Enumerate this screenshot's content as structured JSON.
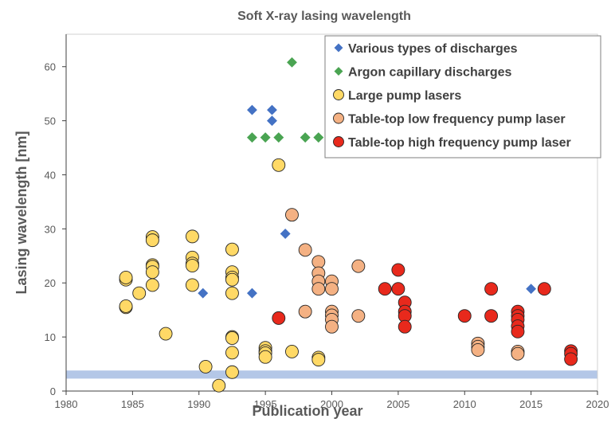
{
  "chart_data": {
    "type": "scatter",
    "title": "Soft X-ray lasing wavelength",
    "xlabel": "Publication year",
    "ylabel": "Lasing wavelength [nm]",
    "xlim": [
      1980,
      2020
    ],
    "ylim": [
      0,
      66
    ],
    "xticks": [
      1980,
      1985,
      1990,
      1995,
      2000,
      2005,
      2010,
      2015,
      2020
    ],
    "yticks": [
      0,
      10,
      20,
      30,
      40,
      50,
      60
    ],
    "grid": false,
    "legend_position": "top-right",
    "band": {
      "y0": 2.3,
      "y1": 3.8,
      "color": "#b4c7e7"
    },
    "series": [
      {
        "name": "Various types of discharges",
        "marker": "diamond",
        "color": "#4472c4",
        "points": [
          [
            1990.3,
            18.1
          ],
          [
            1994,
            52
          ],
          [
            1994,
            18.1
          ],
          [
            1995.5,
            52
          ],
          [
            1995.5,
            50
          ],
          [
            1996.5,
            29.1
          ],
          [
            2002.1,
            13.7
          ],
          [
            2005.1,
            18.9
          ],
          [
            2015,
            18.9
          ]
        ]
      },
      {
        "name": "Argon capillary discharges",
        "marker": "diamond",
        "color": "#4aa452",
        "points": [
          [
            1994,
            46.9
          ],
          [
            1995,
            46.9
          ],
          [
            1996,
            46.9
          ],
          [
            1997,
            60.8
          ],
          [
            1998,
            46.9
          ],
          [
            1999,
            46.9
          ],
          [
            2005,
            46.9
          ]
        ]
      },
      {
        "name": "Large pump lasers",
        "marker": "circle",
        "color": "#ffd966",
        "points": [
          [
            1984.5,
            20.6
          ],
          [
            1984.5,
            21
          ],
          [
            1984.5,
            15.5
          ],
          [
            1984.5,
            15.7
          ],
          [
            1985.5,
            18.1
          ],
          [
            1986.5,
            28.5
          ],
          [
            1986.5,
            27.9
          ],
          [
            1986.5,
            23.3
          ],
          [
            1986.5,
            23.0
          ],
          [
            1986.5,
            22.0
          ],
          [
            1986.5,
            19.6
          ],
          [
            1987.5,
            10.6
          ],
          [
            1989.5,
            28.6
          ],
          [
            1989.5,
            24.7
          ],
          [
            1989.5,
            23.6
          ],
          [
            1989.5,
            23.2
          ],
          [
            1989.5,
            19.6
          ],
          [
            1990.5,
            4.5
          ],
          [
            1991.5,
            1.0
          ],
          [
            1992.5,
            26.2
          ],
          [
            1992.5,
            22.0
          ],
          [
            1992.5,
            21.0
          ],
          [
            1992.5,
            20.6
          ],
          [
            1992.5,
            18.1
          ],
          [
            1992.5,
            10.0
          ],
          [
            1992.5,
            9.8
          ],
          [
            1992.5,
            7.1
          ],
          [
            1992.5,
            3.5
          ],
          [
            1995,
            8.0
          ],
          [
            1995,
            7.4
          ],
          [
            1995,
            7.0
          ],
          [
            1995,
            6.3
          ],
          [
            1996,
            41.8
          ],
          [
            1997,
            7.3
          ],
          [
            1999,
            6.2
          ],
          [
            1999,
            5.8
          ]
        ]
      },
      {
        "name": "Table-top low frequency pump laser",
        "marker": "circle",
        "color": "#f4b183",
        "points": [
          [
            1997,
            32.6
          ],
          [
            1998,
            26.1
          ],
          [
            1998,
            14.7
          ],
          [
            1999,
            23.9
          ],
          [
            1999,
            21.8
          ],
          [
            1999,
            20.3
          ],
          [
            1999,
            18.9
          ],
          [
            2000,
            20.3
          ],
          [
            2000,
            18.9
          ],
          [
            2000,
            14.7
          ],
          [
            2000,
            14.0
          ],
          [
            2000,
            13.2
          ],
          [
            2000,
            11.9
          ],
          [
            2002,
            23.1
          ],
          [
            2002,
            13.9
          ],
          [
            2011,
            8.8
          ],
          [
            2011,
            8.2
          ],
          [
            2011,
            7.6
          ],
          [
            2014,
            7.3
          ],
          [
            2014,
            6.9
          ]
        ]
      },
      {
        "name": "Table-top high frequency pump laser",
        "marker": "circle",
        "color": "#e8291c",
        "points": [
          [
            1996,
            13.5
          ],
          [
            2004,
            18.9
          ],
          [
            2005,
            22.4
          ],
          [
            2005,
            18.9
          ],
          [
            2005.5,
            16.4
          ],
          [
            2005.5,
            14.7
          ],
          [
            2005.5,
            13.9
          ],
          [
            2005.5,
            11.9
          ],
          [
            2010,
            13.9
          ],
          [
            2012,
            18.9
          ],
          [
            2012,
            13.9
          ],
          [
            2014,
            14.7
          ],
          [
            2014,
            13.9
          ],
          [
            2014,
            13.2
          ],
          [
            2014,
            12.0
          ],
          [
            2014,
            11.0
          ],
          [
            2016,
            18.9
          ],
          [
            2018,
            7.4
          ],
          [
            2018,
            6.9
          ],
          [
            2018,
            5.9
          ]
        ]
      }
    ]
  }
}
